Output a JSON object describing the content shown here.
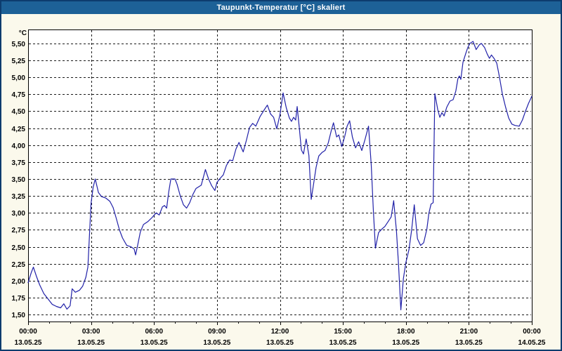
{
  "window": {
    "title": "Taupunkt-Temperatur [°C] skaliert"
  },
  "colors": {
    "titlebar": "#1d6197",
    "window_border": "#0d3c6e",
    "background": "#fbf9ec",
    "plot_background": "#ffffff",
    "line": "#2121a8",
    "grid": "#1a1a1a",
    "text": "#000000"
  },
  "chart_data": {
    "type": "line",
    "title": "Taupunkt-Temperatur [°C] skaliert",
    "unit_label": "°C",
    "xlabel": "",
    "ylabel": "°C",
    "legend": "none",
    "grid": "dashed horizontal every 0.25 °C, dashed vertical every 3 h",
    "ylim": [
      1.4,
      5.7
    ],
    "xlim_hours": [
      0,
      24
    ],
    "minor_xtick_every_hours": 1,
    "vgrid_hours": [
      3,
      6,
      9,
      12,
      15,
      18,
      21
    ],
    "yticks": [
      {
        "value": 5.5,
        "label": "5,50"
      },
      {
        "value": 5.25,
        "label": "5,25"
      },
      {
        "value": 5.0,
        "label": "5,00"
      },
      {
        "value": 4.75,
        "label": "4,75"
      },
      {
        "value": 4.5,
        "label": "4,50"
      },
      {
        "value": 4.25,
        "label": "4,25"
      },
      {
        "value": 4.0,
        "label": "4,00"
      },
      {
        "value": 3.75,
        "label": "3,75"
      },
      {
        "value": 3.5,
        "label": "3,50"
      },
      {
        "value": 3.25,
        "label": "3,25"
      },
      {
        "value": 3.0,
        "label": "3,00"
      },
      {
        "value": 2.75,
        "label": "2,75"
      },
      {
        "value": 2.5,
        "label": "2,50"
      },
      {
        "value": 2.25,
        "label": "2,25"
      },
      {
        "value": 2.0,
        "label": "2,00"
      },
      {
        "value": 1.75,
        "label": "1,75"
      },
      {
        "value": 1.5,
        "label": "1,50"
      }
    ],
    "xticks": [
      {
        "hour": 0,
        "time": "00:00",
        "date": "13.05.25"
      },
      {
        "hour": 3,
        "time": "03:00",
        "date": "13.05.25"
      },
      {
        "hour": 6,
        "time": "06:00",
        "date": "13.05.25"
      },
      {
        "hour": 9,
        "time": "09:00",
        "date": "13.05.25"
      },
      {
        "hour": 12,
        "time": "12:00",
        "date": "13.05.25"
      },
      {
        "hour": 15,
        "time": "15:00",
        "date": "13.05.25"
      },
      {
        "hour": 18,
        "time": "18:00",
        "date": "13.05.25"
      },
      {
        "hour": 21,
        "time": "21:00",
        "date": "13.05.25"
      },
      {
        "hour": 24,
        "time": "00:00",
        "date": "14.05.25"
      }
    ],
    "series": [
      {
        "name": "Taupunkt-Temperatur",
        "points": [
          [
            0.0,
            1.97
          ],
          [
            0.15,
            2.12
          ],
          [
            0.25,
            2.2
          ],
          [
            0.4,
            2.06
          ],
          [
            0.55,
            1.94
          ],
          [
            0.75,
            1.81
          ],
          [
            0.95,
            1.73
          ],
          [
            1.15,
            1.65
          ],
          [
            1.35,
            1.62
          ],
          [
            1.55,
            1.6
          ],
          [
            1.7,
            1.66
          ],
          [
            1.85,
            1.58
          ],
          [
            2.0,
            1.63
          ],
          [
            2.1,
            1.88
          ],
          [
            2.25,
            1.83
          ],
          [
            2.45,
            1.86
          ],
          [
            2.6,
            1.92
          ],
          [
            2.75,
            2.05
          ],
          [
            2.85,
            2.2
          ],
          [
            3.0,
            3.14
          ],
          [
            3.1,
            3.38
          ],
          [
            3.2,
            3.5
          ],
          [
            3.35,
            3.3
          ],
          [
            3.5,
            3.24
          ],
          [
            3.7,
            3.22
          ],
          [
            3.9,
            3.17
          ],
          [
            4.05,
            3.08
          ],
          [
            4.2,
            2.92
          ],
          [
            4.35,
            2.75
          ],
          [
            4.5,
            2.63
          ],
          [
            4.7,
            2.52
          ],
          [
            4.9,
            2.5
          ],
          [
            5.05,
            2.47
          ],
          [
            5.12,
            2.38
          ],
          [
            5.22,
            2.52
          ],
          [
            5.35,
            2.72
          ],
          [
            5.5,
            2.83
          ],
          [
            5.7,
            2.87
          ],
          [
            5.9,
            2.93
          ],
          [
            6.1,
            3.0
          ],
          [
            6.25,
            2.97
          ],
          [
            6.4,
            3.09
          ],
          [
            6.5,
            3.11
          ],
          [
            6.6,
            3.07
          ],
          [
            6.7,
            3.31
          ],
          [
            6.8,
            3.5
          ],
          [
            7.0,
            3.5
          ],
          [
            7.1,
            3.42
          ],
          [
            7.25,
            3.25
          ],
          [
            7.4,
            3.12
          ],
          [
            7.55,
            3.07
          ],
          [
            7.7,
            3.15
          ],
          [
            7.85,
            3.27
          ],
          [
            8.0,
            3.36
          ],
          [
            8.25,
            3.41
          ],
          [
            8.45,
            3.64
          ],
          [
            8.6,
            3.5
          ],
          [
            8.75,
            3.4
          ],
          [
            8.9,
            3.33
          ],
          [
            9.0,
            3.45
          ],
          [
            9.15,
            3.51
          ],
          [
            9.3,
            3.56
          ],
          [
            9.45,
            3.7
          ],
          [
            9.6,
            3.78
          ],
          [
            9.75,
            3.77
          ],
          [
            9.9,
            3.94
          ],
          [
            10.05,
            4.04
          ],
          [
            10.25,
            3.9
          ],
          [
            10.4,
            4.07
          ],
          [
            10.55,
            4.26
          ],
          [
            10.7,
            4.32
          ],
          [
            10.85,
            4.28
          ],
          [
            11.05,
            4.42
          ],
          [
            11.25,
            4.52
          ],
          [
            11.4,
            4.59
          ],
          [
            11.55,
            4.46
          ],
          [
            11.7,
            4.41
          ],
          [
            11.85,
            4.24
          ],
          [
            12.0,
            4.45
          ],
          [
            12.15,
            4.77
          ],
          [
            12.3,
            4.55
          ],
          [
            12.45,
            4.4
          ],
          [
            12.55,
            4.35
          ],
          [
            12.65,
            4.41
          ],
          [
            12.75,
            4.37
          ],
          [
            12.82,
            4.57
          ],
          [
            12.92,
            4.26
          ],
          [
            13.02,
            3.93
          ],
          [
            13.12,
            3.87
          ],
          [
            13.25,
            4.09
          ],
          [
            13.38,
            3.85
          ],
          [
            13.49,
            3.2
          ],
          [
            13.6,
            3.42
          ],
          [
            13.72,
            3.67
          ],
          [
            13.85,
            3.84
          ],
          [
            14.0,
            3.89
          ],
          [
            14.15,
            3.92
          ],
          [
            14.3,
            4.03
          ],
          [
            14.45,
            4.22
          ],
          [
            14.55,
            4.33
          ],
          [
            14.7,
            4.12
          ],
          [
            14.8,
            4.15
          ],
          [
            14.95,
            3.98
          ],
          [
            15.08,
            4.12
          ],
          [
            15.2,
            4.28
          ],
          [
            15.32,
            4.36
          ],
          [
            15.45,
            4.12
          ],
          [
            15.6,
            3.96
          ],
          [
            15.75,
            4.05
          ],
          [
            15.9,
            3.92
          ],
          [
            16.05,
            4.08
          ],
          [
            16.22,
            4.28
          ],
          [
            16.35,
            3.7
          ],
          [
            16.45,
            3.05
          ],
          [
            16.55,
            2.48
          ],
          [
            16.7,
            2.71
          ],
          [
            16.85,
            2.76
          ],
          [
            17.0,
            2.8
          ],
          [
            17.15,
            2.87
          ],
          [
            17.3,
            2.94
          ],
          [
            17.42,
            3.18
          ],
          [
            17.55,
            2.74
          ],
          [
            17.65,
            2.24
          ],
          [
            17.76,
            1.57
          ],
          [
            17.88,
            2.03
          ],
          [
            18.0,
            2.27
          ],
          [
            18.15,
            2.46
          ],
          [
            18.28,
            2.76
          ],
          [
            18.4,
            3.12
          ],
          [
            18.55,
            2.62
          ],
          [
            18.7,
            2.52
          ],
          [
            18.85,
            2.56
          ],
          [
            19.0,
            2.76
          ],
          [
            19.1,
            3.0
          ],
          [
            19.2,
            3.13
          ],
          [
            19.3,
            3.15
          ],
          [
            19.38,
            4.76
          ],
          [
            19.52,
            4.52
          ],
          [
            19.62,
            4.41
          ],
          [
            19.72,
            4.48
          ],
          [
            19.82,
            4.43
          ],
          [
            19.95,
            4.56
          ],
          [
            20.1,
            4.65
          ],
          [
            20.25,
            4.67
          ],
          [
            20.38,
            4.8
          ],
          [
            20.48,
            4.98
          ],
          [
            20.55,
            5.02
          ],
          [
            20.62,
            4.97
          ],
          [
            20.72,
            5.22
          ],
          [
            20.85,
            5.35
          ],
          [
            20.95,
            5.44
          ],
          [
            21.05,
            5.5
          ],
          [
            21.2,
            5.53
          ],
          [
            21.35,
            5.41
          ],
          [
            21.5,
            5.48
          ],
          [
            21.6,
            5.5
          ],
          [
            21.75,
            5.44
          ],
          [
            21.88,
            5.34
          ],
          [
            21.98,
            5.28
          ],
          [
            22.08,
            5.33
          ],
          [
            22.2,
            5.28
          ],
          [
            22.33,
            5.21
          ],
          [
            22.45,
            5.02
          ],
          [
            22.6,
            4.75
          ],
          [
            22.75,
            4.56
          ],
          [
            22.9,
            4.4
          ],
          [
            23.05,
            4.31
          ],
          [
            23.2,
            4.29
          ],
          [
            23.4,
            4.28
          ],
          [
            23.55,
            4.37
          ],
          [
            23.7,
            4.5
          ],
          [
            23.85,
            4.62
          ],
          [
            24.0,
            4.72
          ]
        ]
      }
    ]
  }
}
